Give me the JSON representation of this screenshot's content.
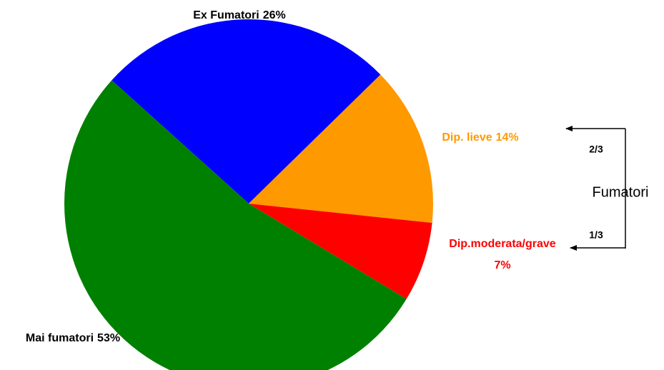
{
  "chart_data": {
    "type": "pie",
    "categories": [
      "Ex Fumatori",
      "Dip. lieve",
      "Dip.moderata/grave",
      "Mai fumatori"
    ],
    "values": [
      26,
      14,
      7,
      53
    ],
    "value_labels": [
      "26%",
      "14%",
      "7%",
      "53%"
    ],
    "colors": [
      "#0000ff",
      "#ff9900",
      "#ff0000",
      "#008000"
    ],
    "label_colors": [
      "#000000",
      "#ff9900",
      "#ff0000",
      "#000000"
    ],
    "annotations": [
      "2/3",
      "Fumatori",
      "1/3"
    ]
  }
}
